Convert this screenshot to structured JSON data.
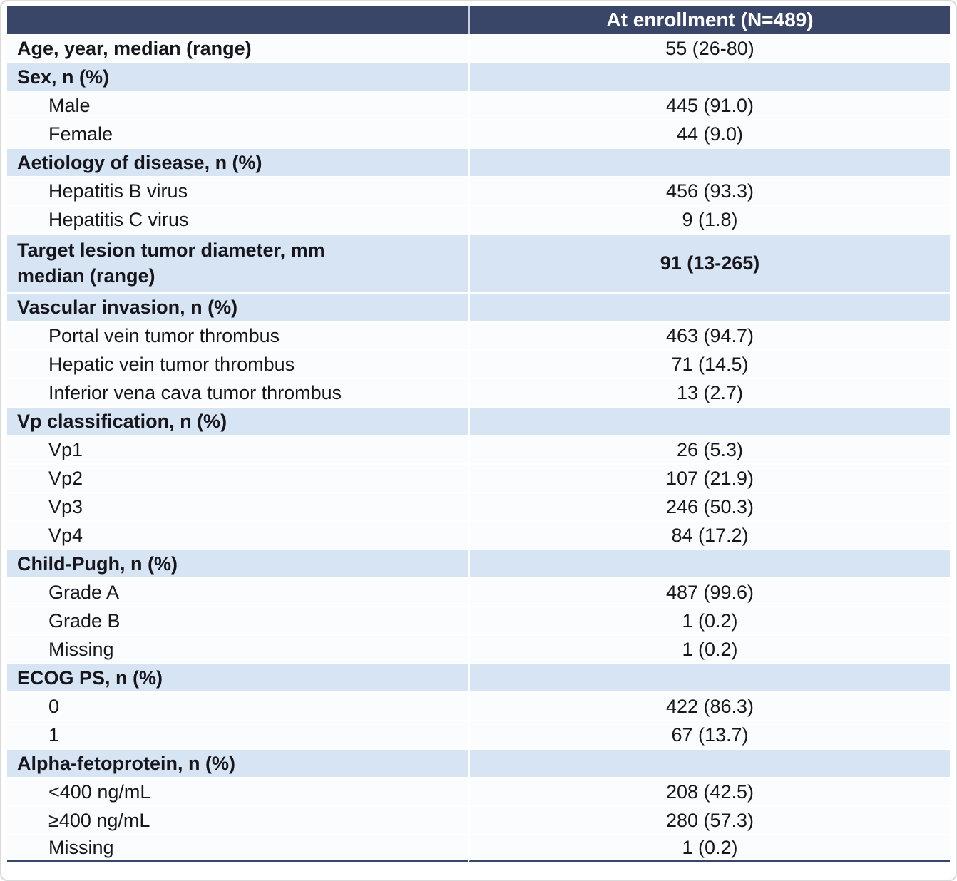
{
  "table": {
    "header": {
      "col1": "",
      "col2": "At enrollment (N=489)"
    },
    "rows": [
      {
        "label": "Age, year, median (range)",
        "value": "55 (26-80)",
        "bold": true,
        "section": false,
        "indent": false
      },
      {
        "label": "Sex, n (%)",
        "value": "",
        "bold": true,
        "section": true,
        "indent": false
      },
      {
        "label": "Male",
        "value": "445 (91.0)",
        "bold": false,
        "section": false,
        "indent": true
      },
      {
        "label": "Female",
        "value": "44 (9.0)",
        "bold": false,
        "section": false,
        "indent": true
      },
      {
        "label": "Aetiology of disease, n (%)",
        "value": "",
        "bold": true,
        "section": true,
        "indent": false
      },
      {
        "label": "Hepatitis B virus",
        "value": "456 (93.3)",
        "bold": false,
        "section": false,
        "indent": true
      },
      {
        "label": "Hepatitis C virus",
        "value": "9 (1.8)",
        "bold": false,
        "section": false,
        "indent": true
      },
      {
        "label": "Target lesion tumor diameter, mm\nmedian (range)",
        "value": "91 (13-265)",
        "bold": true,
        "section": true,
        "indent": false,
        "multiline": true
      },
      {
        "label": "Vascular invasion, n (%)",
        "value": "",
        "bold": true,
        "section": true,
        "indent": false
      },
      {
        "label": "Portal vein tumor thrombus",
        "value": "463 (94.7)",
        "bold": false,
        "section": false,
        "indent": true
      },
      {
        "label": "Hepatic vein tumor thrombus",
        "value": "71 (14.5)",
        "bold": false,
        "section": false,
        "indent": true
      },
      {
        "label": "Inferior vena cava tumor thrombus",
        "value": "13 (2.7)",
        "bold": false,
        "section": false,
        "indent": true
      },
      {
        "label": "Vp classification, n (%)",
        "value": "",
        "bold": true,
        "section": true,
        "indent": false
      },
      {
        "label": "Vp1",
        "value": "26 (5.3)",
        "bold": false,
        "section": false,
        "indent": true
      },
      {
        "label": "Vp2",
        "value": "107 (21.9)",
        "bold": false,
        "section": false,
        "indent": true
      },
      {
        "label": "Vp3",
        "value": "246 (50.3)",
        "bold": false,
        "section": false,
        "indent": true
      },
      {
        "label": "Vp4",
        "value": "84 (17.2)",
        "bold": false,
        "section": false,
        "indent": true
      },
      {
        "label": "Child-Pugh, n (%)",
        "value": "",
        "bold": true,
        "section": true,
        "indent": false
      },
      {
        "label": "Grade A",
        "value": "487 (99.6)",
        "bold": false,
        "section": false,
        "indent": true
      },
      {
        "label": "Grade B",
        "value": "1 (0.2)",
        "bold": false,
        "section": false,
        "indent": true
      },
      {
        "label": "Missing",
        "value": "1 (0.2)",
        "bold": false,
        "section": false,
        "indent": true
      },
      {
        "label": "ECOG PS, n (%)",
        "value": "",
        "bold": true,
        "section": true,
        "indent": false
      },
      {
        "label": "0",
        "value": "422 (86.3)",
        "bold": false,
        "section": false,
        "indent": true
      },
      {
        "label": "1",
        "value": "67 (13.7)",
        "bold": false,
        "section": false,
        "indent": true
      },
      {
        "label": "Alpha-fetoprotein, n (%)",
        "value": "",
        "bold": true,
        "section": true,
        "indent": false
      },
      {
        "label": "<400 ng/mL",
        "value": "208 (42.5)",
        "bold": false,
        "section": false,
        "indent": true
      },
      {
        "label": "≥400 ng/mL",
        "value": "280 (57.3)",
        "bold": false,
        "section": false,
        "indent": true
      },
      {
        "label": "Missing",
        "value": "1 (0.2)",
        "bold": false,
        "section": false,
        "indent": true
      }
    ],
    "colors": {
      "header_bg": "#3A4668",
      "section_bg": "#D7E4F3",
      "row_bg": "#FBFCFE",
      "header_text": "#FFFFFF",
      "body_text": "#17161D",
      "bottom_border": "#3A4668"
    }
  }
}
